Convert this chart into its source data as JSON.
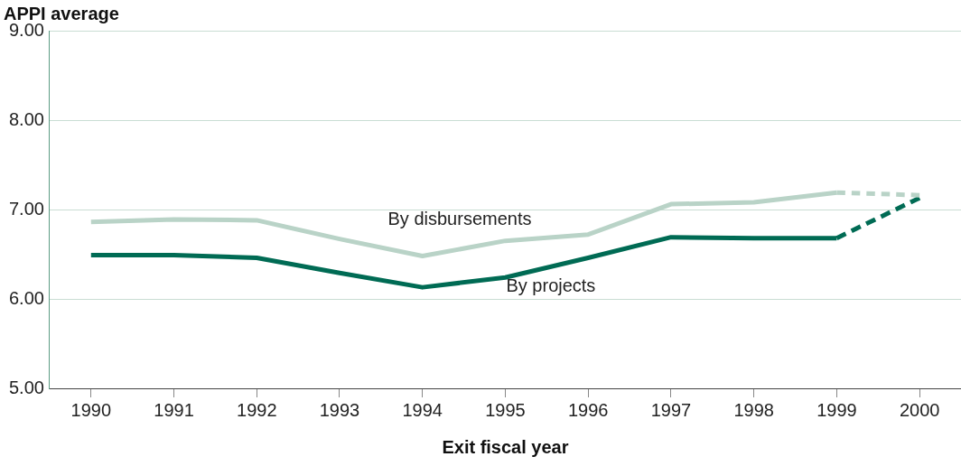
{
  "chart_data": {
    "type": "line",
    "ylabel": "APPI average",
    "xlabel": "Exit fiscal year",
    "categories": [
      "1990",
      "1991",
      "1992",
      "1993",
      "1994",
      "1995",
      "1996",
      "1997",
      "1998",
      "1999",
      "2000"
    ],
    "series": [
      {
        "name": "By disbursements",
        "color": "#b9d3c7",
        "line_style": "solid",
        "values": [
          6.86,
          6.89,
          6.88,
          6.67,
          6.48,
          6.65,
          6.72,
          7.06,
          7.08,
          7.19,
          null
        ]
      },
      {
        "name": "By projects",
        "color": "#006b54",
        "line_style": "solid",
        "values": [
          6.49,
          6.49,
          6.46,
          6.29,
          6.13,
          6.24,
          6.46,
          6.69,
          6.68,
          6.68,
          null
        ]
      },
      {
        "color": "#b9d3c7",
        "line_style": "dashed",
        "values": [
          null,
          null,
          null,
          null,
          null,
          null,
          null,
          null,
          null,
          7.19,
          7.16
        ]
      },
      {
        "color": "#006b54",
        "line_style": "dashed",
        "values": [
          null,
          null,
          null,
          null,
          null,
          null,
          null,
          null,
          null,
          6.68,
          7.13
        ]
      }
    ],
    "ylim": [
      5,
      9
    ],
    "yticks": [
      {
        "value": 5,
        "label": "5.00"
      },
      {
        "value": 6,
        "label": "6.00"
      },
      {
        "value": 7,
        "label": "7.00"
      },
      {
        "value": 8,
        "label": "8.00"
      },
      {
        "value": 9,
        "label": "9.00"
      }
    ],
    "grid": "y",
    "legend": false,
    "marker": "none"
  }
}
